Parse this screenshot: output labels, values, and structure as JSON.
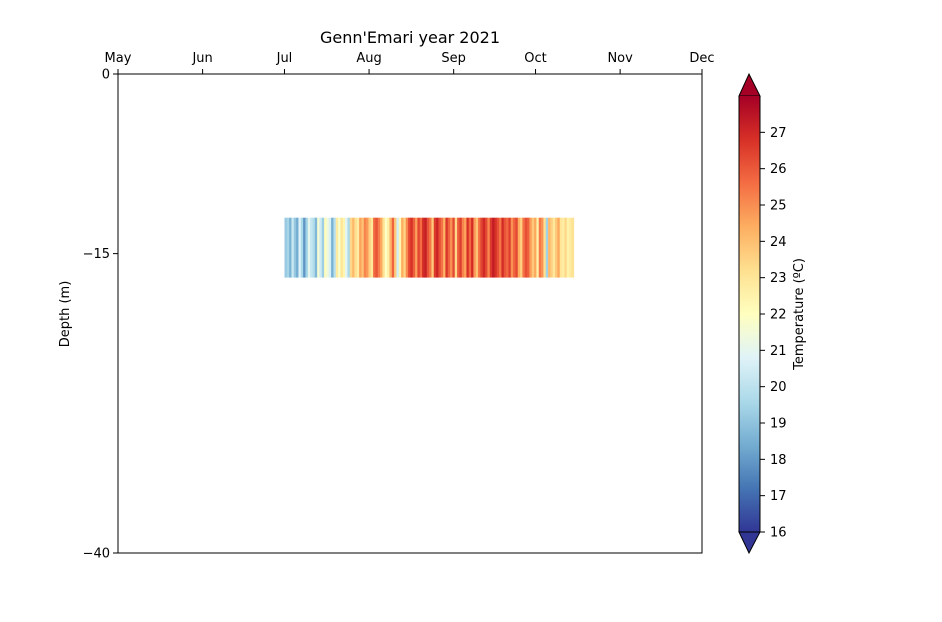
{
  "chart_data": {
    "type": "heatmap",
    "title": "Genn'Emari year 2021",
    "xlabel": "",
    "ylabel": "Depth (m)",
    "x_axis_position": "top",
    "x_ticks": [
      "May",
      "Jun",
      "Jul",
      "Aug",
      "Sep",
      "Oct",
      "Nov",
      "Dec"
    ],
    "xlim": [
      "2021-05-01",
      "2021-12-01"
    ],
    "ylim": [
      -40,
      0
    ],
    "y_ticks": [
      0,
      -15,
      -40
    ],
    "grid": false,
    "colorbar": {
      "label": "Temperature (ºC)",
      "colormap": "RdYlBu_r",
      "vmin": 16,
      "vmax": 28,
      "ticks": [
        16,
        17,
        18,
        19,
        20,
        21,
        22,
        23,
        24,
        25,
        26,
        27
      ],
      "extend": "both",
      "colors": [
        "#313695",
        "#4575b4",
        "#74add1",
        "#abd9e9",
        "#e0f3f8",
        "#ffffbf",
        "#fee090",
        "#fdae61",
        "#f46d43",
        "#d73027",
        "#a50026"
      ]
    },
    "series": [
      {
        "depth_top": -12,
        "depth_bottom": -17,
        "start_date": "2021-07-01",
        "end_date": "2021-10-15",
        "values": [
          19.2,
          19.5,
          18.6,
          20.3,
          19.1,
          18.4,
          20.8,
          19.6,
          17.9,
          19.4,
          21.0,
          20.2,
          19.8,
          18.7,
          21.6,
          20.4,
          19.3,
          22.1,
          21.4,
          20.6,
          18.5,
          19.9,
          22.8,
          21.7,
          23.0,
          22.4,
          20.9,
          19.6,
          23.4,
          24.1,
          23.2,
          22.7,
          24.6,
          23.9,
          25.2,
          24.8,
          23.6,
          22.9,
          25.7,
          26.1,
          25.3,
          24.5,
          23.1,
          21.9,
          22.6,
          24.2,
          25.8,
          23.7,
          20.5,
          22.3,
          24.4,
          23.5,
          25.1,
          26.3,
          26.8,
          25.9,
          24.7,
          26.4,
          25.6,
          26.9,
          27.2,
          26.1,
          25.4,
          23.8,
          26.6,
          27.1,
          26.2,
          25.5,
          24.3,
          26.7,
          25.8,
          24.9,
          26.3,
          23.4,
          25.9,
          26.5,
          25.2,
          24.6,
          26.8,
          25.7,
          26.9,
          24.8,
          23.9,
          25.6,
          26.4,
          27.0,
          26.3,
          25.1,
          26.6,
          27.3,
          26.8,
          26.2,
          25.4,
          26.9,
          26.1,
          25.7,
          26.5,
          24.9,
          25.8,
          26.3,
          24.4,
          23.6,
          25.5,
          26.2,
          25.9,
          24.7,
          23.8,
          24.5,
          22.6,
          25.4,
          24.9,
          23.2,
          19.4,
          24.1,
          23.6,
          22.9,
          23.8,
          24.5,
          23.0,
          22.7,
          23.4,
          22.5,
          22.8,
          23.1
        ]
      }
    ]
  }
}
